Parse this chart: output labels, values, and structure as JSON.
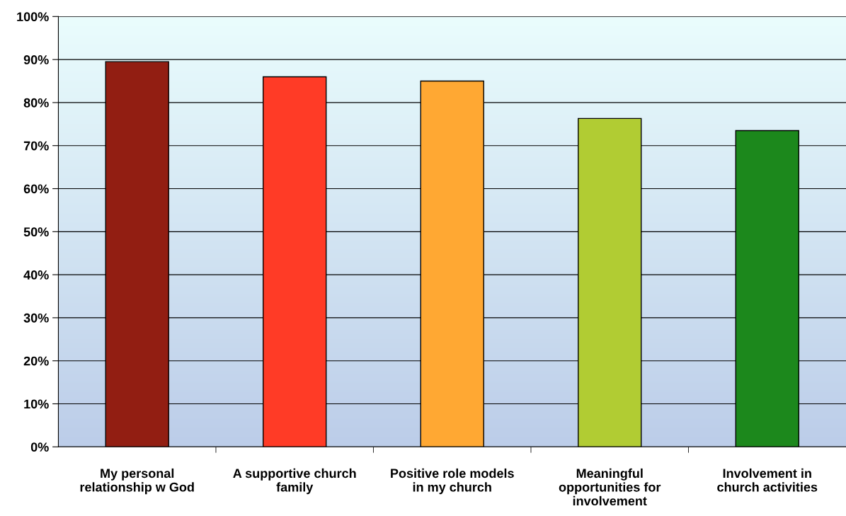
{
  "chart_data": {
    "type": "bar",
    "categories": [
      "My personal\nrelationship w God",
      "A supportive church\nfamily",
      "Positive role models\nin my church",
      "Meaningful\nopportunities for\ninvolvement",
      "Involvement in\nchurch activities"
    ],
    "values": [
      89.5,
      86,
      85,
      76.3,
      73.5
    ],
    "colors": [
      "#921e12",
      "#ff3b26",
      "#ffa833",
      "#b1cc33",
      "#1c881c"
    ],
    "ylim": [
      0,
      100
    ],
    "yticks": [
      {
        "value": 0,
        "label": "0%"
      },
      {
        "value": 10,
        "label": "10%"
      },
      {
        "value": 20,
        "label": "20%"
      },
      {
        "value": 30,
        "label": "30%"
      },
      {
        "value": 40,
        "label": "40%"
      },
      {
        "value": 50,
        "label": "50%"
      },
      {
        "value": 60,
        "label": "60%"
      },
      {
        "value": 70,
        "label": "70%"
      },
      {
        "value": 80,
        "label": "80%"
      },
      {
        "value": 90,
        "label": "90%"
      },
      {
        "value": 100,
        "label": "100%"
      }
    ],
    "grid": "y"
  }
}
